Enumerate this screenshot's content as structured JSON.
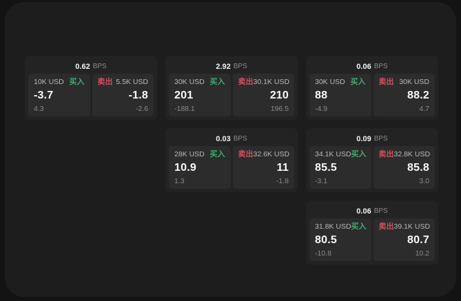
{
  "labels": {
    "bps_unit": "BPS",
    "buy": "买入",
    "sell": "卖出"
  },
  "colors": {
    "buy_green": "#42a970",
    "sell_red": "#cf4f5e",
    "price_white": "#fafafa",
    "muted_gray": "#8a8a8a",
    "outer_bg": "#131313",
    "window_bg": "#1d1d1e",
    "card_bg": "#232323",
    "panel_bg": "#2c2c2d"
  },
  "cards": [
    {
      "row": 0,
      "col": 0,
      "bps": "0.62",
      "buy": {
        "size": "10K USD",
        "price": "-3.7",
        "delta": "4.3"
      },
      "sell": {
        "size": "5.5K USD",
        "price": "-1.8",
        "delta": "-2.6"
      }
    },
    {
      "row": 0,
      "col": 1,
      "bps": "2.92",
      "buy": {
        "size": "30K USD",
        "price": "201",
        "delta": "-188.1"
      },
      "sell": {
        "size": "30.1K USD",
        "price": "210",
        "delta": "196.5"
      }
    },
    {
      "row": 0,
      "col": 2,
      "bps": "0.06",
      "buy": {
        "size": "30K USD",
        "price": "88",
        "delta": "-4.9"
      },
      "sell": {
        "size": "30K USD",
        "price": "88.2",
        "delta": "4.7"
      }
    },
    {
      "row": 1,
      "col": 1,
      "bps": "0.03",
      "buy": {
        "size": "28K USD",
        "price": "10.9",
        "delta": "1.3"
      },
      "sell": {
        "size": "32.6K USD",
        "price": "11",
        "delta": "-1.8"
      }
    },
    {
      "row": 1,
      "col": 2,
      "bps": "0.09",
      "buy": {
        "size": "34.1K USD",
        "price": "85.5",
        "delta": "-3.1"
      },
      "sell": {
        "size": "32.8K USD",
        "price": "85.8",
        "delta": "3.0"
      }
    },
    {
      "row": 2,
      "col": 2,
      "bps": "0.06",
      "buy": {
        "size": "31.8K USD",
        "price": "80.5",
        "delta": "-10.8"
      },
      "sell": {
        "size": "39.1K USD",
        "price": "80.7",
        "delta": "10.2"
      }
    }
  ]
}
